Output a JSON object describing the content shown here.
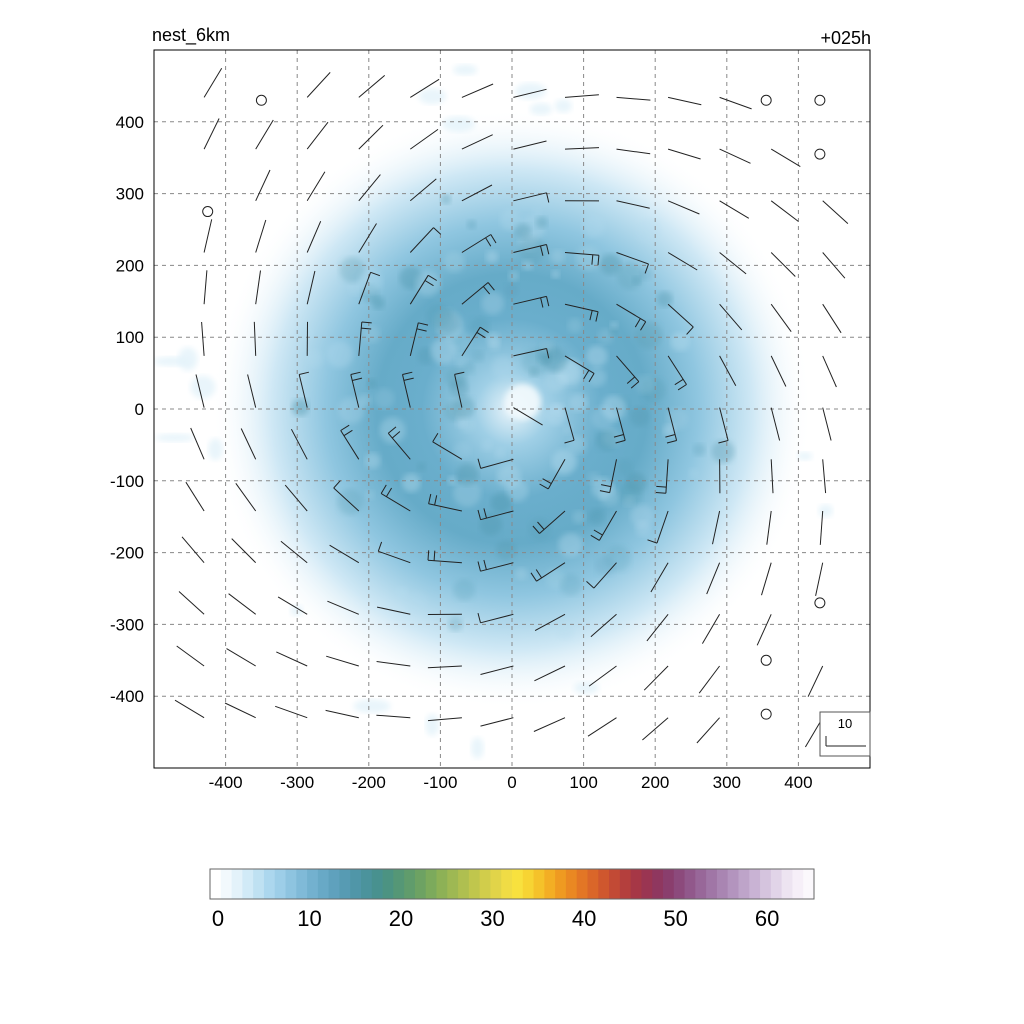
{
  "chart_data": {
    "type": "heatmap",
    "title_left": "nest_6km",
    "title_right": "+025h",
    "xlim": [
      -500,
      500
    ],
    "ylim": [
      -500,
      500
    ],
    "x_ticks": [
      -400,
      -300,
      -200,
      -100,
      0,
      100,
      200,
      300,
      400
    ],
    "y_ticks": [
      400,
      300,
      200,
      100,
      0,
      -100,
      -200,
      -300,
      -400
    ],
    "grid": true,
    "field": {
      "description_values": "filled contours of wind speed, max ~18 in an annulus ~100-250 km from center, lighter core near 0,0",
      "peak_value": 18,
      "annulus_radius_km": 170,
      "outer_radius_km": 420,
      "core_value": 8
    },
    "wind_barbs": {
      "spacing_km": 72,
      "circulation": "cyclonic",
      "calm_points": [
        [
          -350,
          430
        ],
        [
          -425,
          275
        ],
        [
          355,
          430
        ],
        [
          430,
          430
        ],
        [
          430,
          355
        ],
        [
          430,
          -270
        ],
        [
          355,
          -350
        ],
        [
          355,
          -425
        ]
      ]
    },
    "reference_vector": {
      "label": "10"
    },
    "colorbar": {
      "min": 0,
      "max": 66,
      "tick_labels": [
        "0",
        "10",
        "20",
        "30",
        "40",
        "50",
        "60"
      ],
      "tick_values": [
        0,
        10,
        20,
        30,
        40,
        50,
        60
      ],
      "colors": [
        "#ffffff",
        "#f2f9fd",
        "#e3f2fa",
        "#d1eaf7",
        "#bfe1f2",
        "#acd7ee",
        "#9dcee8",
        "#8ec4e0",
        "#80bad8",
        "#73b1cf",
        "#68a9c6",
        "#5fa1bd",
        "#579bb3",
        "#5096a8",
        "#4b939c",
        "#48918f",
        "#4c9382",
        "#559776",
        "#609c6c",
        "#6da263",
        "#7caa5c",
        "#8db156",
        "#9eb853",
        "#afbf50",
        "#c0c64d",
        "#d1cd4b",
        "#e1d449",
        "#f0dc45",
        "#f8e13e",
        "#f7d433",
        "#f5c22a",
        "#f3ae24",
        "#ef9a21",
        "#ea8822",
        "#e37625",
        "#da6629",
        "#cf572e",
        "#c24a35",
        "#b43f3d",
        "#a63746",
        "#9a3552",
        "#8f375f",
        "#8a3e6d",
        "#8c4a7c",
        "#91588b",
        "#986799",
        "#a076a6",
        "#a985b2",
        "#b394be",
        "#bea4c9",
        "#c9b3d4",
        "#d5c4de",
        "#e1d4e8",
        "#ede4f1",
        "#f6eff8",
        "#fbf8fc"
      ]
    }
  }
}
